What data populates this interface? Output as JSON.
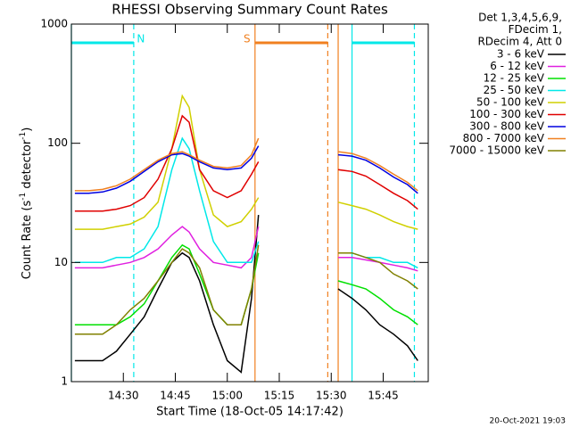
{
  "chart_data": {
    "type": "line",
    "title": "RHESSI Observing Summary Count Rates",
    "xlabel": "Start Time (18-Oct-05 14:17:42)",
    "ylabel": [
      "Count Rate (s",
      "-1",
      " detector",
      "-1",
      ")"
    ],
    "info": [
      "Det 1,3,4,5,6,9,",
      "FDecim 1,",
      "RDecim 4, Att 0"
    ],
    "footer": "20-Oct-2021 19:03",
    "log_y": true,
    "xlim": [
      "14:15",
      "15:58"
    ],
    "xticks": [
      "14:30",
      "14:45",
      "15:00",
      "15:15",
      "15:30",
      "15:45"
    ],
    "ylim": [
      1,
      1000
    ],
    "yticks": [
      1,
      10,
      100,
      1000
    ],
    "x": [
      "14:16",
      "14:20",
      "14:24",
      "14:28",
      "14:32",
      "14:36",
      "14:40",
      "14:44",
      "14:47",
      "14:49",
      "14:52",
      "14:56",
      "15:00",
      "15:04",
      "15:07",
      "15:09",
      "15:20",
      "15:32",
      "15:36",
      "15:40",
      "15:44",
      "15:48",
      "15:52",
      "15:55"
    ],
    "series": [
      {
        "name": "3 - 6 keV",
        "color": "#000000",
        "values": [
          1.5,
          1.5,
          1.5,
          1.8,
          2.5,
          3.5,
          6,
          10,
          12,
          11,
          7,
          3,
          1.5,
          1.2,
          5,
          25,
          null,
          6,
          5,
          4,
          3,
          2.5,
          2,
          1.5
        ]
      },
      {
        "name": "6 - 12 keV",
        "color": "#e020e0",
        "values": [
          9,
          9,
          9,
          9.5,
          10,
          11,
          13,
          17,
          20,
          18,
          13,
          10,
          9.5,
          9,
          11,
          20,
          null,
          11,
          11,
          10.5,
          10,
          9.5,
          9,
          8.5
        ]
      },
      {
        "name": "12 - 25 keV",
        "color": "#00e000",
        "values": [
          3,
          3,
          3,
          3,
          3.5,
          4.5,
          7,
          11,
          14,
          13,
          8,
          4,
          3,
          3,
          6,
          12,
          null,
          7,
          6.5,
          6,
          5,
          4,
          3.5,
          3
        ]
      },
      {
        "name": "25 - 50 keV",
        "color": "#00e8e8",
        "values": [
          10,
          10,
          10,
          11,
          11,
          13,
          20,
          60,
          110,
          90,
          40,
          15,
          10,
          10,
          10,
          15,
          null,
          12,
          12,
          11,
          11,
          10,
          10,
          9
        ]
      },
      {
        "name": "50 - 100 keV",
        "color": "#d0d000",
        "values": [
          19,
          19,
          19,
          20,
          21,
          24,
          32,
          90,
          250,
          200,
          60,
          25,
          20,
          22,
          28,
          35,
          null,
          32,
          30,
          28,
          25,
          22,
          20,
          19
        ]
      },
      {
        "name": "100 - 300 keV",
        "color": "#e00000",
        "values": [
          27,
          27,
          27,
          28,
          30,
          35,
          50,
          90,
          170,
          150,
          60,
          40,
          35,
          40,
          55,
          70,
          null,
          60,
          58,
          53,
          45,
          38,
          33,
          28
        ]
      },
      {
        "name": "300 - 800 keV",
        "color": "#0000e0",
        "values": [
          38,
          38,
          39,
          42,
          48,
          58,
          70,
          80,
          82,
          78,
          70,
          62,
          60,
          62,
          75,
          95,
          null,
          80,
          78,
          72,
          62,
          52,
          45,
          38
        ]
      },
      {
        "name": "800 - 7000 keV",
        "color": "#f08020",
        "values": [
          40,
          40,
          41,
          44,
          50,
          60,
          72,
          82,
          85,
          80,
          72,
          64,
          62,
          65,
          80,
          110,
          null,
          85,
          82,
          75,
          65,
          55,
          47,
          40
        ]
      },
      {
        "name": "7000 - 15000 keV",
        "color": "#808000",
        "values": [
          2.5,
          2.5,
          2.5,
          3,
          4,
          5,
          7,
          10,
          13,
          12,
          9,
          4,
          3,
          3,
          6,
          14,
          null,
          12,
          12,
          11,
          10,
          8,
          7,
          6
        ]
      }
    ],
    "markers": [
      {
        "x": "14:15",
        "color": "#00e8e8",
        "dashed": false
      },
      {
        "x": "14:33",
        "color": "#00e8e8",
        "dashed": true
      },
      {
        "x": "15:36",
        "color": "#00e8e8",
        "dashed": false
      },
      {
        "x": "15:54",
        "color": "#00e8e8",
        "dashed": true
      },
      {
        "x": "15:08",
        "color": "#f08020",
        "dashed": false
      },
      {
        "x": "15:29",
        "color": "#f08020",
        "dashed": true
      },
      {
        "x": "15:32",
        "color": "#f08020",
        "dashed": false
      }
    ],
    "bars": [
      {
        "from": "14:15",
        "to": "14:33",
        "color": "#00e8e8",
        "label": "N"
      },
      {
        "from": "15:36",
        "to": "15:54",
        "color": "#00e8e8"
      },
      {
        "from": "15:08",
        "to": "15:29",
        "color": "#f08020",
        "label": "S"
      }
    ]
  }
}
